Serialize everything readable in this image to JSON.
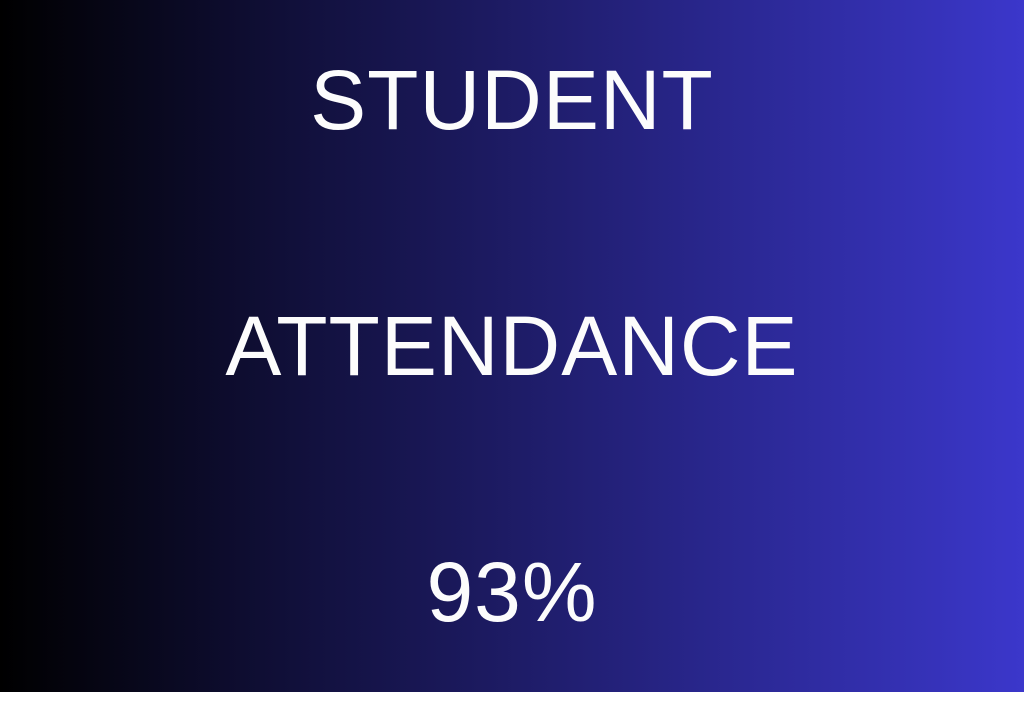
{
  "slide": {
    "title_line1": "STUDENT",
    "title_line2": "ATTENDANCE",
    "value_line": "93%",
    "colors": {
      "background_gradient_from": "#000000",
      "background_gradient_to": "#3B37CB",
      "gradient_direction": "to right",
      "text": "#FCFCFC"
    }
  }
}
